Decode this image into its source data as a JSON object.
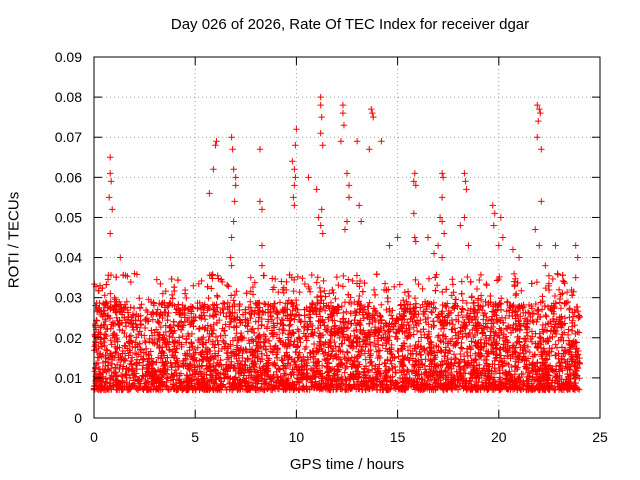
{
  "chart_data": {
    "type": "scatter",
    "title": "Day 026 of 2026, Rate Of TEC Index for receiver dgar",
    "xlabel": "GPS time / hours",
    "ylabel": "ROTI / TECUs",
    "xlim": [
      0,
      25
    ],
    "ylim": [
      0,
      0.09
    ],
    "xticks": [
      0,
      5,
      10,
      15,
      20,
      25
    ],
    "xtick_labels": [
      "0",
      "5",
      "10",
      "15",
      "20",
      "25"
    ],
    "yticks": [
      0,
      0.01,
      0.02,
      0.03,
      0.04,
      0.05,
      0.06,
      0.07,
      0.08,
      0.09
    ],
    "ytick_labels": [
      "0",
      "0.01",
      "0.02",
      "0.03",
      "0.04",
      "0.05",
      "0.06",
      "0.07",
      "0.08",
      "0.09"
    ],
    "grid": true,
    "marker": "+",
    "marker_color": "#ff0000",
    "series": [
      {
        "name": "ROTI",
        "x_range_hours": [
          0,
          24
        ],
        "bulk_typical_range": [
          0.003,
          0.025
        ],
        "notable_points": [
          {
            "x": 0.8,
            "y": 0.065
          },
          {
            "x": 0.8,
            "y": 0.061
          },
          {
            "x": 0.85,
            "y": 0.059
          },
          {
            "x": 0.75,
            "y": 0.055
          },
          {
            "x": 0.9,
            "y": 0.052
          },
          {
            "x": 0.8,
            "y": 0.046
          },
          {
            "x": 0.3,
            "y": 0.033
          },
          {
            "x": 1.3,
            "y": 0.04
          },
          {
            "x": 2.0,
            "y": 0.036
          },
          {
            "x": 3.4,
            "y": 0.031
          },
          {
            "x": 4.5,
            "y": 0.031
          },
          {
            "x": 5.7,
            "y": 0.056
          },
          {
            "x": 5.9,
            "y": 0.062
          },
          {
            "x": 6.0,
            "y": 0.068
          },
          {
            "x": 6.05,
            "y": 0.069
          },
          {
            "x": 6.8,
            "y": 0.07
          },
          {
            "x": 6.85,
            "y": 0.067
          },
          {
            "x": 6.9,
            "y": 0.062
          },
          {
            "x": 7.0,
            "y": 0.06
          },
          {
            "x": 7.0,
            "y": 0.058
          },
          {
            "x": 6.95,
            "y": 0.054
          },
          {
            "x": 6.9,
            "y": 0.049
          },
          {
            "x": 6.8,
            "y": 0.045
          },
          {
            "x": 6.75,
            "y": 0.04
          },
          {
            "x": 6.8,
            "y": 0.038
          },
          {
            "x": 8.2,
            "y": 0.067
          },
          {
            "x": 8.2,
            "y": 0.054
          },
          {
            "x": 8.3,
            "y": 0.052
          },
          {
            "x": 8.3,
            "y": 0.043
          },
          {
            "x": 8.3,
            "y": 0.038
          },
          {
            "x": 9.8,
            "y": 0.064
          },
          {
            "x": 9.9,
            "y": 0.062
          },
          {
            "x": 9.95,
            "y": 0.06
          },
          {
            "x": 10.0,
            "y": 0.072
          },
          {
            "x": 9.95,
            "y": 0.068
          },
          {
            "x": 9.9,
            "y": 0.058
          },
          {
            "x": 9.85,
            "y": 0.055
          },
          {
            "x": 9.9,
            "y": 0.053
          },
          {
            "x": 10.6,
            "y": 0.06
          },
          {
            "x": 11.0,
            "y": 0.057
          },
          {
            "x": 11.2,
            "y": 0.08
          },
          {
            "x": 11.2,
            "y": 0.078
          },
          {
            "x": 11.25,
            "y": 0.075
          },
          {
            "x": 11.2,
            "y": 0.071
          },
          {
            "x": 11.3,
            "y": 0.068
          },
          {
            "x": 11.25,
            "y": 0.052
          },
          {
            "x": 11.1,
            "y": 0.05
          },
          {
            "x": 11.2,
            "y": 0.048
          },
          {
            "x": 11.3,
            "y": 0.046
          },
          {
            "x": 12.2,
            "y": 0.069
          },
          {
            "x": 12.3,
            "y": 0.078
          },
          {
            "x": 12.3,
            "y": 0.076
          },
          {
            "x": 12.35,
            "y": 0.073
          },
          {
            "x": 12.5,
            "y": 0.061
          },
          {
            "x": 12.6,
            "y": 0.058
          },
          {
            "x": 12.6,
            "y": 0.055
          },
          {
            "x": 12.5,
            "y": 0.049
          },
          {
            "x": 12.4,
            "y": 0.047
          },
          {
            "x": 13.0,
            "y": 0.069
          },
          {
            "x": 13.1,
            "y": 0.053
          },
          {
            "x": 13.2,
            "y": 0.049
          },
          {
            "x": 13.6,
            "y": 0.067
          },
          {
            "x": 13.7,
            "y": 0.077
          },
          {
            "x": 13.75,
            "y": 0.076
          },
          {
            "x": 13.8,
            "y": 0.075
          },
          {
            "x": 14.2,
            "y": 0.069
          },
          {
            "x": 14.6,
            "y": 0.043
          },
          {
            "x": 15.0,
            "y": 0.045
          },
          {
            "x": 15.8,
            "y": 0.059
          },
          {
            "x": 15.85,
            "y": 0.061
          },
          {
            "x": 15.9,
            "y": 0.058
          },
          {
            "x": 15.8,
            "y": 0.051
          },
          {
            "x": 15.85,
            "y": 0.045
          },
          {
            "x": 15.9,
            "y": 0.044
          },
          {
            "x": 16.5,
            "y": 0.045
          },
          {
            "x": 16.8,
            "y": 0.041
          },
          {
            "x": 17.2,
            "y": 0.061
          },
          {
            "x": 17.25,
            "y": 0.06
          },
          {
            "x": 17.2,
            "y": 0.055
          },
          {
            "x": 17.1,
            "y": 0.05
          },
          {
            "x": 17.2,
            "y": 0.049
          },
          {
            "x": 17.3,
            "y": 0.046
          },
          {
            "x": 17.0,
            "y": 0.043
          },
          {
            "x": 17.2,
            "y": 0.04
          },
          {
            "x": 18.3,
            "y": 0.061
          },
          {
            "x": 18.35,
            "y": 0.059
          },
          {
            "x": 18.4,
            "y": 0.057
          },
          {
            "x": 18.3,
            "y": 0.05
          },
          {
            "x": 18.1,
            "y": 0.048
          },
          {
            "x": 18.5,
            "y": 0.043
          },
          {
            "x": 19.7,
            "y": 0.053
          },
          {
            "x": 19.8,
            "y": 0.051
          },
          {
            "x": 19.75,
            "y": 0.048
          },
          {
            "x": 20.1,
            "y": 0.05
          },
          {
            "x": 20.2,
            "y": 0.045
          },
          {
            "x": 20.0,
            "y": 0.043
          },
          {
            "x": 20.7,
            "y": 0.042
          },
          {
            "x": 21.0,
            "y": 0.04
          },
          {
            "x": 21.9,
            "y": 0.078
          },
          {
            "x": 22.0,
            "y": 0.077
          },
          {
            "x": 22.05,
            "y": 0.076
          },
          {
            "x": 21.95,
            "y": 0.074
          },
          {
            "x": 21.9,
            "y": 0.07
          },
          {
            "x": 22.1,
            "y": 0.067
          },
          {
            "x": 22.1,
            "y": 0.054
          },
          {
            "x": 21.8,
            "y": 0.047
          },
          {
            "x": 22.0,
            "y": 0.043
          },
          {
            "x": 22.3,
            "y": 0.038
          },
          {
            "x": 22.8,
            "y": 0.043
          },
          {
            "x": 22.9,
            "y": 0.036
          },
          {
            "x": 23.8,
            "y": 0.043
          },
          {
            "x": 23.9,
            "y": 0.04
          },
          {
            "x": 23.8,
            "y": 0.035
          }
        ]
      }
    ]
  }
}
